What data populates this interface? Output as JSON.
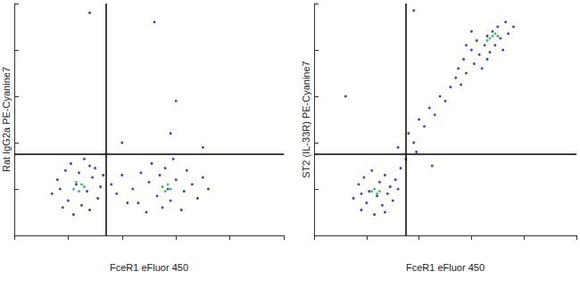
{
  "chart_data": [
    {
      "type": "scatter",
      "xlabel": "FceR1 eFluor 450",
      "ylabel": "Rat IgG2a PE-Cyanine7",
      "xlim": [
        0,
        100
      ],
      "ylim": [
        0,
        100
      ],
      "xticks": [
        0,
        20,
        40,
        60,
        80,
        100
      ],
      "yticks": [
        0,
        20,
        40,
        60,
        80,
        100
      ],
      "tick_labels": false,
      "grid": false,
      "gates": {
        "x": 34,
        "y": 35
      },
      "series": [
        {
          "color": "#1f2aa8",
          "values": [
            [
              14,
              18
            ],
            [
              16,
              24
            ],
            [
              18,
              12
            ],
            [
              19,
              28
            ],
            [
              20,
              15
            ],
            [
              21,
              31
            ],
            [
              22,
              9
            ],
            [
              23,
              22
            ],
            [
              24,
              27
            ],
            [
              25,
              13
            ],
            [
              26,
              33
            ],
            [
              27,
              19
            ],
            [
              28,
              11
            ],
            [
              29,
              25
            ],
            [
              30,
              29
            ],
            [
              31,
              16
            ],
            [
              32,
              21
            ],
            [
              33,
              26
            ],
            [
              17,
              20
            ],
            [
              28,
              30
            ],
            [
              44,
              20
            ],
            [
              46,
              14
            ],
            [
              47,
              27
            ],
            [
              49,
              10
            ],
            [
              50,
              23
            ],
            [
              51,
              31
            ],
            [
              53,
              17
            ],
            [
              54,
              26
            ],
            [
              55,
              12
            ],
            [
              56,
              29
            ],
            [
              57,
              20
            ],
            [
              58,
              15
            ],
            [
              59,
              33
            ],
            [
              60,
              24
            ],
            [
              62,
              11
            ],
            [
              63,
              19
            ],
            [
              64,
              28
            ],
            [
              66,
              22
            ],
            [
              68,
              16
            ],
            [
              70,
              25
            ],
            [
              72,
              20
            ],
            [
              36,
              22
            ],
            [
              38,
              18
            ],
            [
              40,
              26
            ],
            [
              42,
              14
            ],
            [
              28,
              96
            ],
            [
              52,
              92
            ],
            [
              60,
              58
            ],
            [
              40,
              40
            ],
            [
              58,
              44
            ],
            [
              70,
              38
            ]
          ]
        },
        {
          "color": "#2fae5a",
          "values": [
            [
              22,
              20
            ],
            [
              24,
              19
            ],
            [
              25,
              22
            ],
            [
              26,
              21
            ],
            [
              23,
              23
            ],
            [
              55,
              21
            ],
            [
              57,
              22
            ],
            [
              58,
              20
            ],
            [
              56,
              19
            ]
          ]
        }
      ]
    },
    {
      "type": "scatter",
      "xlabel": "FceR1 eFluor 450",
      "ylabel": "ST2 (IL-33R) PE-Cyanine7",
      "xlim": [
        0,
        100
      ],
      "ylim": [
        0,
        100
      ],
      "xticks": [
        0,
        20,
        40,
        60,
        80,
        100
      ],
      "yticks": [
        0,
        20,
        40,
        60,
        80,
        100
      ],
      "tick_labels": false,
      "grid": false,
      "gates": {
        "x": 35,
        "y": 35
      },
      "series": [
        {
          "color": "#1f2aa8",
          "values": [
            [
              15,
              16
            ],
            [
              17,
              22
            ],
            [
              18,
              11
            ],
            [
              19,
              25
            ],
            [
              20,
              14
            ],
            [
              21,
              19
            ],
            [
              22,
              28
            ],
            [
              23,
              9
            ],
            [
              24,
              17
            ],
            [
              25,
              23
            ],
            [
              26,
              13
            ],
            [
              27,
              26
            ],
            [
              28,
              18
            ],
            [
              29,
              21
            ],
            [
              30,
              15
            ],
            [
              31,
              24
            ],
            [
              32,
              20
            ],
            [
              33,
              29
            ],
            [
              18,
              18
            ],
            [
              27,
              10
            ],
            [
              32,
              38
            ],
            [
              36,
              44
            ],
            [
              38,
              40
            ],
            [
              40,
              50
            ],
            [
              42,
              47
            ],
            [
              44,
              55
            ],
            [
              46,
              52
            ],
            [
              48,
              60
            ],
            [
              50,
              58
            ],
            [
              52,
              64
            ],
            [
              54,
              68
            ],
            [
              56,
              65
            ],
            [
              35,
              33
            ],
            [
              39,
              36
            ],
            [
              55,
              72
            ],
            [
              57,
              76
            ],
            [
              58,
              70
            ],
            [
              60,
              80
            ],
            [
              61,
              74
            ],
            [
              62,
              84
            ],
            [
              63,
              78
            ],
            [
              64,
              72
            ],
            [
              65,
              82
            ],
            [
              66,
              86
            ],
            [
              67,
              79
            ],
            [
              68,
              88
            ],
            [
              69,
              82
            ],
            [
              70,
              90
            ],
            [
              71,
              85
            ],
            [
              72,
              80
            ],
            [
              73,
              92
            ],
            [
              74,
              87
            ],
            [
              60,
              88
            ],
            [
              76,
              90
            ],
            [
              58,
              82
            ],
            [
              66,
              76
            ],
            [
              38,
              97
            ],
            [
              12,
              60
            ],
            [
              45,
              30
            ]
          ]
        },
        {
          "color": "#2fae5a",
          "values": [
            [
              22,
              19
            ],
            [
              24,
              18
            ],
            [
              23,
              20
            ],
            [
              25,
              19
            ],
            [
              67,
              85
            ],
            [
              68,
              86
            ],
            [
              69,
              87
            ],
            [
              66,
              84
            ],
            [
              70,
              86
            ]
          ]
        }
      ]
    }
  ]
}
